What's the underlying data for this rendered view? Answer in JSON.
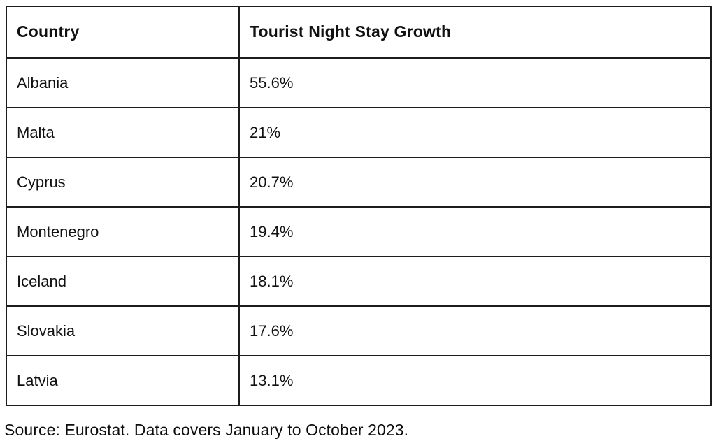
{
  "page": {
    "background": "#ffffff",
    "text_color": "#111111",
    "border_color": "#1c1c1c"
  },
  "table": {
    "columns": [
      "Country",
      "Tourist Night Stay Growth"
    ],
    "rows": [
      {
        "country": "Albania",
        "growth": "55.6%"
      },
      {
        "country": "Malta",
        "growth": "21%"
      },
      {
        "country": "Cyprus",
        "growth": "20.7%"
      },
      {
        "country": "Montenegro",
        "growth": "19.4%"
      },
      {
        "country": "Iceland",
        "growth": "18.1%"
      },
      {
        "country": "Slovakia",
        "growth": "17.6%"
      },
      {
        "country": "Latvia",
        "growth": "13.1%"
      }
    ]
  },
  "source_note": "Source: Eurostat. Data covers January to October 2023.",
  "chart_data": {
    "type": "table",
    "title": "",
    "columns": [
      "Country",
      "Tourist Night Stay Growth"
    ],
    "categories": [
      "Albania",
      "Malta",
      "Cyprus",
      "Montenegro",
      "Iceland",
      "Slovakia",
      "Latvia"
    ],
    "values": [
      55.6,
      21,
      20.7,
      19.4,
      18.1,
      17.6,
      13.1
    ],
    "value_unit": "%",
    "rows": [
      [
        "Albania",
        "55.6%"
      ],
      [
        "Malta",
        "21%"
      ],
      [
        "Cyprus",
        "20.7%"
      ],
      [
        "Montenegro",
        "19.4%"
      ],
      [
        "Iceland",
        "18.1%"
      ],
      [
        "Slovakia",
        "17.6%"
      ],
      [
        "Latvia",
        "13.1%"
      ]
    ],
    "annotations": [
      "Source: Eurostat. Data covers January to October 2023."
    ],
    "layout_hints": {
      "grid": "full-borders",
      "header_row": true,
      "header_bottom_border": "thick"
    }
  }
}
